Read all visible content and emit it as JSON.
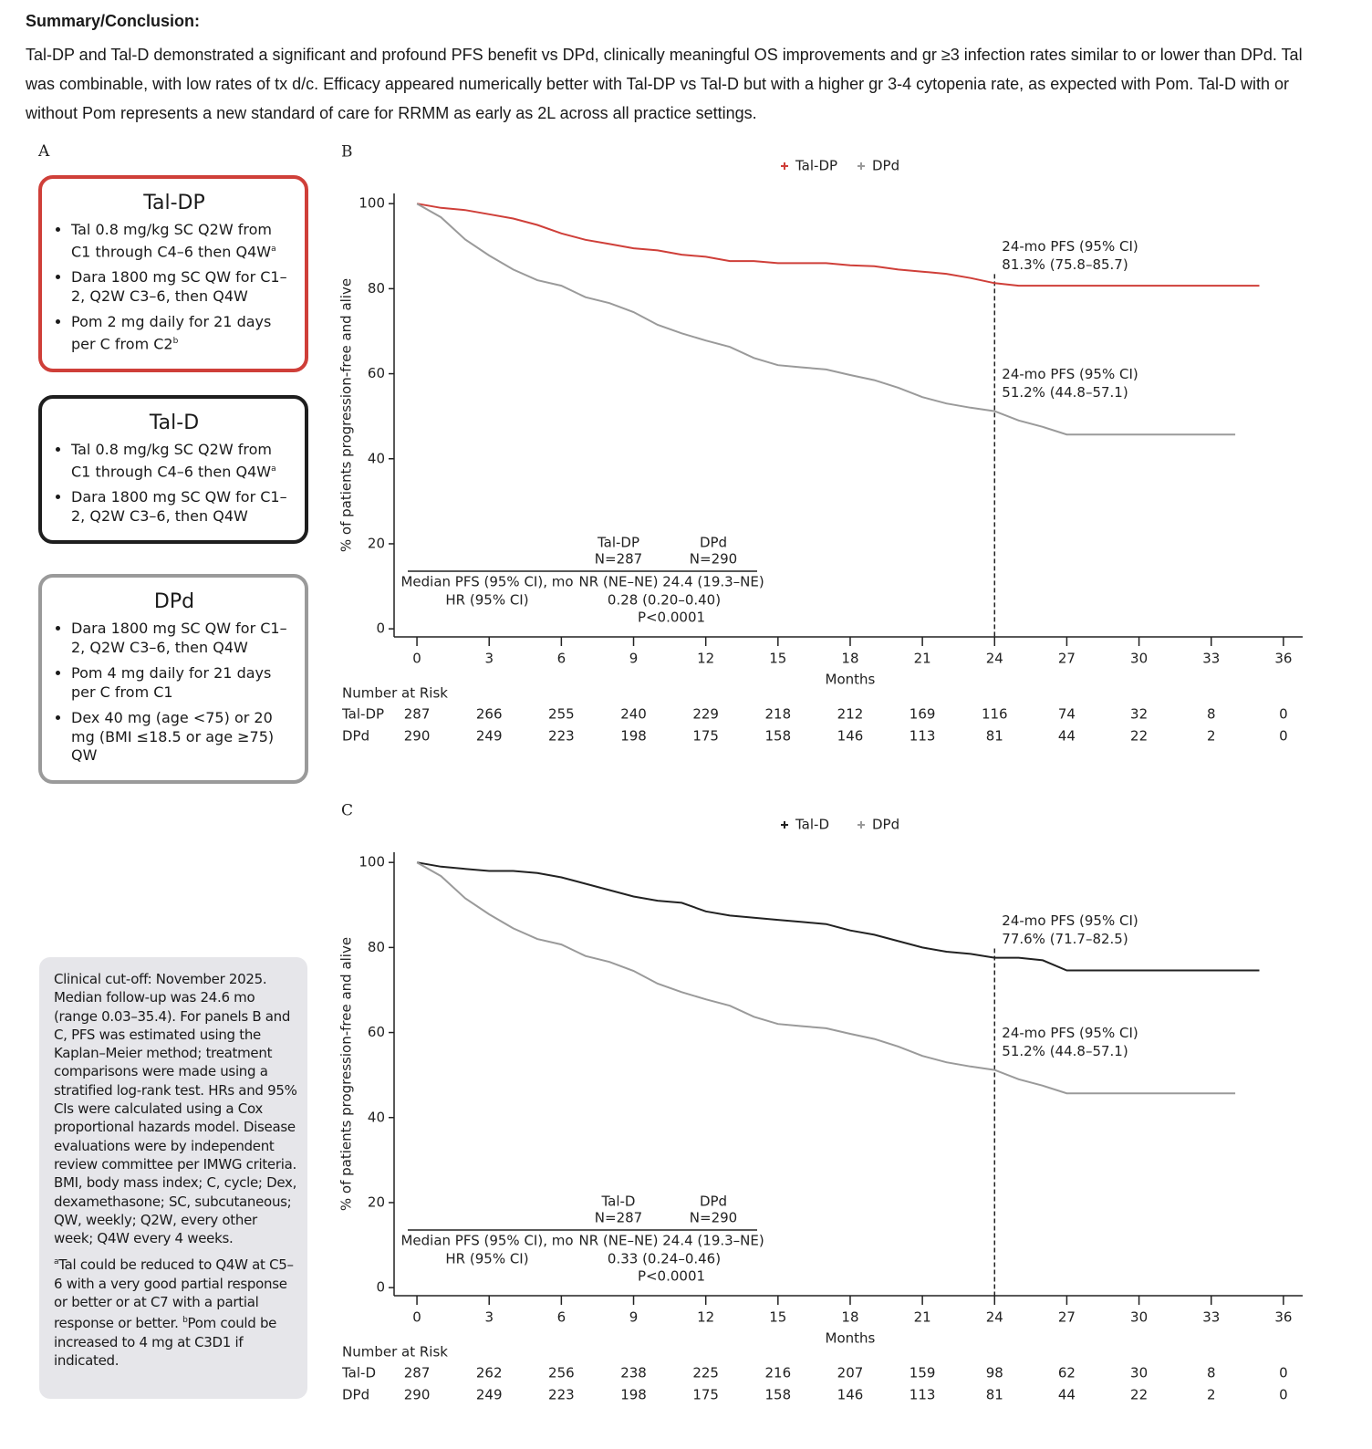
{
  "summary": {
    "heading": "Summary/Conclusion:",
    "text": "Tal-DP and Tal-D demonstrated a significant and profound PFS benefit vs DPd, clinically meaningful OS improvements and gr ≥3 infection rates similar to or lower than DPd. Tal was combinable, with low rates of tx d/c. Efficacy appeared numerically better with Tal-DP vs Tal-D but with a higher gr 3-4 cytopenia rate, as expected with Pom. Tal-D with or without Pom represents a new standard of care for RRMM as early as 2L across all practice settings."
  },
  "panel_a": {
    "label": "A",
    "boxes": [
      {
        "title": "Tal-DP",
        "color": "#cf3f39",
        "bullets": [
          {
            "text": "Tal 0.8 mg/kg SC Q2W from C1 through C4–6 then Q4W",
            "sup": "a"
          },
          {
            "text": "Dara 1800 mg SC QW for C1–2, Q2W C3–6, then Q4W"
          },
          {
            "text": "Pom 2 mg daily for 21 days per C from C2",
            "sup": "b"
          }
        ]
      },
      {
        "title": "Tal-D",
        "color": "#1e1e1e",
        "bullets": [
          {
            "text": "Tal 0.8 mg/kg SC Q2W from C1 through C4–6 then Q4W",
            "sup": "a"
          },
          {
            "text": "Dara 1800 mg SC QW for C1–2, Q2W C3–6, then Q4W"
          }
        ]
      },
      {
        "title": "DPd",
        "color": "#9a9a9a",
        "bullets": [
          {
            "text": "Dara 1800 mg SC QW for C1–2, Q2W C3–6, then Q4W"
          },
          {
            "text": "Pom 4 mg daily for 21 days per C from C1"
          },
          {
            "text": "Dex 40 mg (age <75) or 20 mg (BMI ≤18.5 or age ≥75) QW"
          }
        ]
      }
    ]
  },
  "notes": {
    "paragraph": "Clinical cut-off: November 2025. Median follow-up was 24.6 mo (range 0.03–35.4). For panels B and C, PFS was estimated using the Kaplan–Meier method; treatment comparisons were made using a stratified log-rank test. HRs and 95% CIs were calculated using a Cox proportional hazards model. Disease evaluations were by independent review committee per IMWG criteria. BMI, body mass index; C, cycle; Dex, dexamethasone; SC, subcutaneous; QW, weekly; Q2W, every other week; Q4W every 4 weeks.",
    "footnotes": [
      {
        "sup": "a",
        "text": "Tal could be reduced to Q4W at C5–6 with a very good partial response or better or at C7 with a partial response or better. "
      },
      {
        "sup": "b",
        "text": "Pom could be increased to 4 mg at C3D1 if indicated."
      }
    ]
  },
  "chart_data": [
    {
      "type": "line",
      "panel_label": "B",
      "x_label": "Months",
      "y_label": "% of patients progression-free and alive",
      "x": [
        0,
        1,
        2,
        3,
        4,
        5,
        6,
        7,
        8,
        9,
        10,
        11,
        12,
        13,
        14,
        15,
        16,
        17,
        18,
        19,
        20,
        21,
        22,
        23,
        24,
        25,
        26,
        27,
        28,
        29,
        30,
        31,
        32,
        33,
        34,
        35
      ],
      "series": [
        {
          "name": "Tal-DP",
          "color": "#cf3f39",
          "values": [
            100,
            99,
            98.5,
            97.5,
            96.5,
            95,
            93,
            91.5,
            90.5,
            89.5,
            89,
            88,
            87.5,
            86.5,
            86.5,
            86,
            86,
            86,
            85.5,
            85.3,
            84.5,
            84,
            83.5,
            82.5,
            81.3,
            80.7,
            80.7,
            80.7,
            80.7,
            80.7,
            80.7,
            80.7,
            80.7,
            80.7,
            80.7,
            80.7
          ]
        },
        {
          "name": "DPd",
          "color": "#9a9a9a",
          "values": [
            100,
            96.8,
            91.6,
            87.8,
            84.5,
            82,
            80.7,
            78,
            76.6,
            74.5,
            71.5,
            69.5,
            67.8,
            66.3,
            63.7,
            62,
            61.5,
            61,
            59.7,
            58.5,
            56.7,
            54.5,
            53,
            52,
            51.2,
            49,
            47.5,
            45.7,
            45.7,
            45.7,
            45.7,
            45.7,
            45.7,
            45.7,
            45.7,
            null
          ]
        }
      ],
      "xlim": [
        -0.95,
        36.8
      ],
      "xticks": [
        0,
        3,
        6,
        9,
        12,
        15,
        18,
        21,
        24,
        27,
        30,
        33,
        36
      ],
      "ylim": [
        -1.9,
        102.4
      ],
      "yticks": [
        0,
        20,
        40,
        60,
        80,
        100
      ],
      "vline": 24,
      "annotations": [
        {
          "lines": [
            "24-mo PFS (95% CI)",
            "81.3% (75.8–85.7)"
          ],
          "color": "#cf3f39"
        },
        {
          "lines": [
            "24-mo PFS (95% CI)",
            "51.2% (44.8–57.1)"
          ],
          "color": "#8a8a8a"
        }
      ],
      "inset_table": {
        "columns": [
          {
            "name": "Tal-DP",
            "n": "N=287"
          },
          {
            "name": "DPd",
            "n": "N=290"
          }
        ],
        "rows": [
          {
            "label": "Median PFS (95% CI), mo",
            "cells": [
              "NR (NE–NE)",
              "24.4 (19.3–NE)"
            ]
          },
          {
            "label": "HR (95% CI)",
            "cells": [
              "0.28 (0.20–0.40)"
            ]
          }
        ],
        "p_value": "P<0.0001"
      },
      "risk_table": {
        "title": "Number at Risk",
        "rows": [
          {
            "name": "Tal-DP",
            "values": [
              287,
              266,
              255,
              240,
              229,
              218,
              212,
              169,
              116,
              74,
              32,
              8,
              0
            ]
          },
          {
            "name": "DPd",
            "values": [
              290,
              249,
              223,
              198,
              175,
              158,
              146,
              113,
              81,
              44,
              22,
              2,
              0
            ]
          }
        ]
      }
    },
    {
      "type": "line",
      "panel_label": "C",
      "x_label": "Months",
      "y_label": "% of patients progression-free and alive",
      "x": [
        0,
        1,
        2,
        3,
        4,
        5,
        6,
        7,
        8,
        9,
        10,
        11,
        12,
        13,
        14,
        15,
        16,
        17,
        18,
        19,
        20,
        21,
        22,
        23,
        24,
        25,
        26,
        27,
        28,
        29,
        30,
        31,
        32,
        33,
        34,
        35
      ],
      "series": [
        {
          "name": "Tal-D",
          "color": "#222222",
          "values": [
            100,
            99,
            98.5,
            98,
            98,
            97.5,
            96.5,
            95,
            93.5,
            92,
            91,
            90.5,
            88.5,
            87.5,
            87,
            86.5,
            86,
            85.5,
            84,
            83,
            81.5,
            80,
            79,
            78.5,
            77.6,
            77.6,
            77,
            74.6,
            74.6,
            74.6,
            74.6,
            74.6,
            74.6,
            74.6,
            74.6,
            74.6
          ]
        },
        {
          "name": "DPd",
          "color": "#9a9a9a",
          "values": [
            100,
            96.8,
            91.6,
            87.8,
            84.5,
            82,
            80.7,
            78,
            76.6,
            74.5,
            71.5,
            69.5,
            67.8,
            66.3,
            63.7,
            62,
            61.5,
            61,
            59.7,
            58.5,
            56.7,
            54.5,
            53,
            52,
            51.2,
            49,
            47.5,
            45.7,
            45.7,
            45.7,
            45.7,
            45.7,
            45.7,
            45.7,
            45.7,
            null
          ]
        }
      ],
      "xlim": [
        -0.95,
        36.8
      ],
      "xticks": [
        0,
        3,
        6,
        9,
        12,
        15,
        18,
        21,
        24,
        27,
        30,
        33,
        36
      ],
      "ylim": [
        -1.9,
        102.4
      ],
      "yticks": [
        0,
        20,
        40,
        60,
        80,
        100
      ],
      "vline": 24,
      "annotations": [
        {
          "lines": [
            "24-mo PFS (95% CI)",
            "77.6% (71.7–82.5)"
          ],
          "color": "#333333"
        },
        {
          "lines": [
            "24-mo PFS (95% CI)",
            "51.2% (44.8–57.1)"
          ],
          "color": "#8a8a8a"
        }
      ],
      "inset_table": {
        "columns": [
          {
            "name": "Tal-D",
            "n": "N=287"
          },
          {
            "name": "DPd",
            "n": "N=290"
          }
        ],
        "rows": [
          {
            "label": "Median PFS (95% CI), mo",
            "cells": [
              "NR (NE–NE)",
              "24.4 (19.3–NE)"
            ]
          },
          {
            "label": "HR (95% CI)",
            "cells": [
              "0.33 (0.24–0.46)"
            ]
          }
        ],
        "p_value": "P<0.0001"
      },
      "risk_table": {
        "title": "Number at Risk",
        "rows": [
          {
            "name": "Tal-D",
            "values": [
              287,
              262,
              256,
              238,
              225,
              216,
              207,
              159,
              98,
              62,
              30,
              8,
              0
            ]
          },
          {
            "name": "DPd",
            "values": [
              290,
              249,
              223,
              198,
              175,
              158,
              146,
              113,
              81,
              44,
              22,
              2,
              0
            ]
          }
        ]
      }
    }
  ]
}
